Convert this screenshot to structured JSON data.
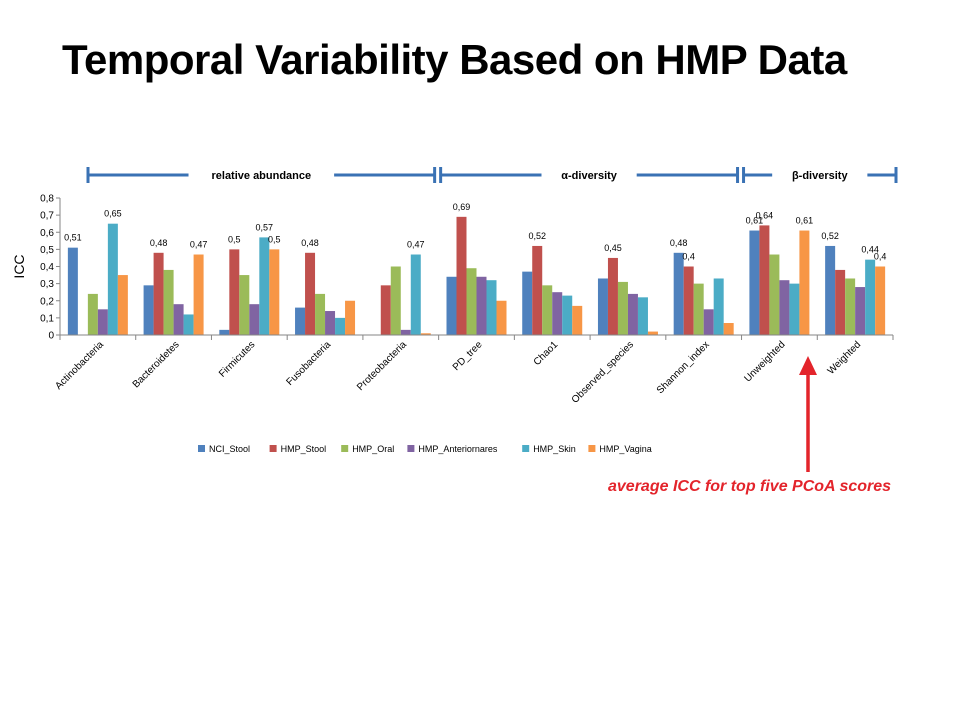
{
  "page": {
    "title": "Temporal Variability Based on HMP Data",
    "annotation": "average ICC for top five PCoA scores",
    "annotation_color": "#e3242b"
  },
  "chart_data": {
    "type": "bar",
    "ylabel": "ICC",
    "ylim": [
      0,
      0.8
    ],
    "yticks": [
      "0",
      "0,1",
      "0,2",
      "0,3",
      "0,4",
      "0,5",
      "0,6",
      "0,7",
      "0,8"
    ],
    "ytick_values": [
      0,
      0.1,
      0.2,
      0.3,
      0.4,
      0.5,
      0.6,
      0.7,
      0.8
    ],
    "grid": false,
    "legend_position": "bottom",
    "categories": [
      "Actinobacteria",
      "Bacteroidetes",
      "Firmicutes",
      "Fusobacteria",
      "Proteobacteria",
      "PD_tree",
      "Chao1",
      "Observed_species",
      "Shannon_index",
      "Unweighted",
      "Weighted"
    ],
    "groups": [
      {
        "label": "relative abundance",
        "start": 0,
        "end": 4
      },
      {
        "label": "α-diversity",
        "start": 5,
        "end": 8
      },
      {
        "label": "β-diversity",
        "start": 9,
        "end": 10
      }
    ],
    "bracket_color": "#3a72b4",
    "series": [
      {
        "name": "NCI_Stool",
        "color": "#4f81bd",
        "values": [
          0.51,
          0.29,
          0.03,
          0.16,
          0,
          0.34,
          0.37,
          0.33,
          0.48,
          0.61,
          0.52
        ]
      },
      {
        "name": "HMP_Stool",
        "color": "#c0504d",
        "values": [
          0,
          0.48,
          0.5,
          0.48,
          0.29,
          0.69,
          0.52,
          0.45,
          0.4,
          0.64,
          0.38
        ]
      },
      {
        "name": "HMP_Oral",
        "color": "#9bbb59",
        "values": [
          0.24,
          0.38,
          0.35,
          0.24,
          0.4,
          0.39,
          0.29,
          0.31,
          0.3,
          0.47,
          0.33
        ]
      },
      {
        "name": "HMP_Anteriornares",
        "color": "#8064a2",
        "values": [
          0.15,
          0.18,
          0.18,
          0.14,
          0.03,
          0.34,
          0.25,
          0.24,
          0.15,
          0.32,
          0.28
        ]
      },
      {
        "name": "HMP_Skin",
        "color": "#4bacc6",
        "values": [
          0.65,
          0.12,
          0.57,
          0.1,
          0.47,
          0.32,
          0.23,
          0.22,
          0.33,
          0.3,
          0.44
        ]
      },
      {
        "name": "HMP_Vagina",
        "color": "#f79646",
        "values": [
          0.35,
          0.47,
          0.5,
          0.2,
          0.01,
          0.2,
          0.17,
          0.02,
          0.07,
          0.61,
          0.4
        ]
      }
    ],
    "data_labels": [
      {
        "category": 0,
        "series": 0,
        "text": "0,51"
      },
      {
        "category": 0,
        "series": 4,
        "text": "0,65"
      },
      {
        "category": 1,
        "series": 1,
        "text": "0,48"
      },
      {
        "category": 1,
        "series": 5,
        "text": "0,47"
      },
      {
        "category": 2,
        "series": 1,
        "text": "0,5"
      },
      {
        "category": 2,
        "series": 4,
        "text": "0,57"
      },
      {
        "category": 2,
        "series": 5,
        "text": "0,5"
      },
      {
        "category": 3,
        "series": 1,
        "text": "0,48"
      },
      {
        "category": 4,
        "series": 4,
        "text": "0,47"
      },
      {
        "category": 5,
        "series": 1,
        "text": "0,69"
      },
      {
        "category": 6,
        "series": 1,
        "text": "0,52"
      },
      {
        "category": 7,
        "series": 1,
        "text": "0,45"
      },
      {
        "category": 8,
        "series": 0,
        "text": "0,48"
      },
      {
        "category": 8,
        "series": 1,
        "text": "0,4"
      },
      {
        "category": 9,
        "series": 0,
        "text": "0,61"
      },
      {
        "category": 9,
        "series": 1,
        "text": "0,64"
      },
      {
        "category": 9,
        "series": 5,
        "text": "0,61"
      },
      {
        "category": 10,
        "series": 0,
        "text": "0,52"
      },
      {
        "category": 10,
        "series": 4,
        "text": "0,44"
      },
      {
        "category": 10,
        "series": 5,
        "text": "0,4"
      }
    ]
  }
}
